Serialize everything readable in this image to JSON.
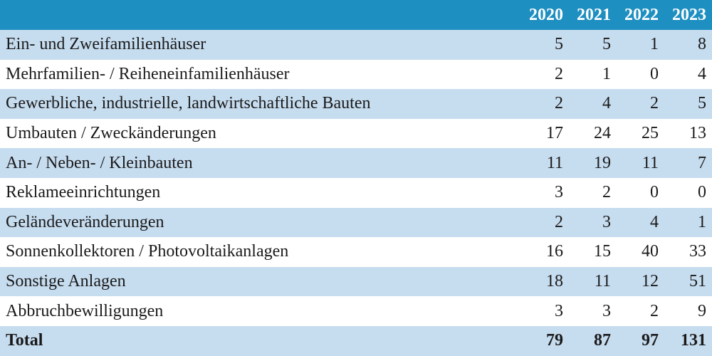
{
  "chart_data": {
    "type": "table",
    "columns": [
      "2020",
      "2021",
      "2022",
      "2023"
    ],
    "rows": [
      {
        "label": "Ein- und Zweifamilienhäuser",
        "values": [
          5,
          5,
          1,
          8
        ]
      },
      {
        "label": "Mehrfamilien- / Reiheneinfamilienhäuser",
        "values": [
          2,
          1,
          0,
          4
        ]
      },
      {
        "label": "Gewerbliche, industrielle, landwirtschaftliche Bauten",
        "values": [
          2,
          4,
          2,
          5
        ]
      },
      {
        "label": "Umbauten / Zweckänderungen",
        "values": [
          17,
          24,
          25,
          13
        ]
      },
      {
        "label": "An- / Neben- / Kleinbauten",
        "values": [
          11,
          19,
          11,
          7
        ]
      },
      {
        "label": "Reklameeinrichtungen",
        "values": [
          3,
          2,
          0,
          0
        ]
      },
      {
        "label": "Geländeveränderungen",
        "values": [
          2,
          3,
          4,
          1
        ]
      },
      {
        "label": "Sonnenkollektoren / Photovoltaikanlagen",
        "values": [
          16,
          15,
          40,
          33
        ]
      },
      {
        "label": "Sonstige Anlagen",
        "values": [
          18,
          11,
          12,
          51
        ]
      },
      {
        "label": "Abbruchbewilligungen",
        "values": [
          3,
          3,
          2,
          9
        ]
      }
    ],
    "total": {
      "label": "Total",
      "values": [
        79,
        87,
        97,
        131
      ]
    }
  },
  "colors": {
    "header": "#1e8fc1",
    "stripe": "#c6dcef"
  }
}
